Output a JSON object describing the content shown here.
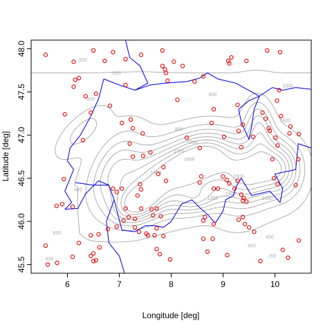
{
  "chart_data": {
    "type": "scatter",
    "title": "",
    "xlabel": "Longitude [deg]",
    "ylabel": "Latitude [deg]",
    "xlim": [
      5.3,
      10.7
    ],
    "ylim": [
      45.4,
      48.1
    ],
    "x_ticks": [
      6,
      7,
      8,
      9,
      10
    ],
    "y_ticks": [
      45.5,
      46.0,
      46.5,
      47.0,
      47.5,
      48.0
    ],
    "x_tick_labels": [
      "6",
      "7",
      "8",
      "9",
      "10"
    ],
    "y_tick_labels": [
      "45.5",
      "46.0",
      "46.5",
      "47.0",
      "47.5",
      "48.0"
    ],
    "grid": false,
    "legend": "none",
    "colors": {
      "points": "#e00000",
      "border": "#1010e0",
      "contours": "#9a9a9a",
      "contour_labels": "#a8a8a8"
    },
    "contour_levels": [
      200,
      400,
      600,
      800,
      1000,
      1200,
      1400,
      1600,
      1800
    ],
    "contour_labels": [
      {
        "text": "600",
        "lon": 6.3,
        "lat": 47.85
      },
      {
        "text": "800",
        "lon": 6.45,
        "lat": 47.4
      },
      {
        "text": "600",
        "lon": 6.95,
        "lat": 47.7
      },
      {
        "text": "800",
        "lon": 8.15,
        "lat": 47.05
      },
      {
        "text": "1200",
        "lon": 8.15,
        "lat": 46.8
      },
      {
        "text": "1400",
        "lon": 7.7,
        "lat": 46.55
      },
      {
        "text": "1000",
        "lon": 8.4,
        "lat": 46.9
      },
      {
        "text": "800",
        "lon": 8.8,
        "lat": 47.45
      },
      {
        "text": "1000",
        "lon": 10.25,
        "lat": 47.55
      },
      {
        "text": "1600",
        "lon": 10.2,
        "lat": 47.15
      },
      {
        "text": "1800",
        "lon": 9.3,
        "lat": 46.5
      },
      {
        "text": "1600",
        "lon": 8.35,
        "lat": 46.7
      },
      {
        "text": "1200",
        "lon": 8.8,
        "lat": 46.25
      },
      {
        "text": "1400",
        "lon": 9.15,
        "lat": 46.3
      },
      {
        "text": "1800",
        "lon": 9.85,
        "lat": 46.25
      },
      {
        "text": "400",
        "lon": 6.2,
        "lat": 46.35
      },
      {
        "text": "600",
        "lon": 5.8,
        "lat": 45.85
      },
      {
        "text": "400",
        "lon": 5.65,
        "lat": 45.55
      },
      {
        "text": "600",
        "lon": 9.9,
        "lat": 45.8
      },
      {
        "text": "400",
        "lon": 9.55,
        "lat": 45.7
      },
      {
        "text": "200",
        "lon": 9.95,
        "lat": 45.58
      }
    ],
    "points": [
      {
        "lon": 5.58,
        "lat": 47.93
      },
      {
        "lon": 6.12,
        "lat": 47.85
      },
      {
        "lon": 6.15,
        "lat": 47.64
      },
      {
        "lon": 6.22,
        "lat": 47.66
      },
      {
        "lon": 6.12,
        "lat": 47.56
      },
      {
        "lon": 6.5,
        "lat": 47.98
      },
      {
        "lon": 6.72,
        "lat": 47.86
      },
      {
        "lon": 6.88,
        "lat": 47.96
      },
      {
        "lon": 7.12,
        "lat": 47.88
      },
      {
        "lon": 7.42,
        "lat": 47.93
      },
      {
        "lon": 7.83,
        "lat": 47.98
      },
      {
        "lon": 7.83,
        "lat": 47.8
      },
      {
        "lon": 7.88,
        "lat": 47.76
      },
      {
        "lon": 7.9,
        "lat": 47.72
      },
      {
        "lon": 8.05,
        "lat": 47.85
      },
      {
        "lon": 8.22,
        "lat": 47.8
      },
      {
        "lon": 7.93,
        "lat": 47.63
      },
      {
        "lon": 8.45,
        "lat": 47.62
      },
      {
        "lon": 8.62,
        "lat": 47.68
      },
      {
        "lon": 9.1,
        "lat": 47.86
      },
      {
        "lon": 9.12,
        "lat": 47.83
      },
      {
        "lon": 9.16,
        "lat": 47.9
      },
      {
        "lon": 9.45,
        "lat": 47.86
      },
      {
        "lon": 9.85,
        "lat": 47.98
      },
      {
        "lon": 10.1,
        "lat": 47.96
      },
      {
        "lon": 10.08,
        "lat": 47.52
      },
      {
        "lon": 10.04,
        "lat": 47.4
      },
      {
        "lon": 6.35,
        "lat": 47.45
      },
      {
        "lon": 6.55,
        "lat": 47.48
      },
      {
        "lon": 6.82,
        "lat": 47.34
      },
      {
        "lon": 7.12,
        "lat": 47.58
      },
      {
        "lon": 8.12,
        "lat": 47.41
      },
      {
        "lon": 5.95,
        "lat": 47.24
      },
      {
        "lon": 6.45,
        "lat": 47.26
      },
      {
        "lon": 7.05,
        "lat": 47.14
      },
      {
        "lon": 7.22,
        "lat": 47.18
      },
      {
        "lon": 7.26,
        "lat": 47.08
      },
      {
        "lon": 6.3,
        "lat": 46.94
      },
      {
        "lon": 7.2,
        "lat": 46.9
      },
      {
        "lon": 7.45,
        "lat": 47.02
      },
      {
        "lon": 7.6,
        "lat": 46.8
      },
      {
        "lon": 7.46,
        "lat": 46.76
      },
      {
        "lon": 7.26,
        "lat": 46.75
      },
      {
        "lon": 8.78,
        "lat": 47.14
      },
      {
        "lon": 8.82,
        "lat": 47.3
      },
      {
        "lon": 9.28,
        "lat": 47.35
      },
      {
        "lon": 9.3,
        "lat": 47.05
      },
      {
        "lon": 9.02,
        "lat": 46.98
      },
      {
        "lon": 9.38,
        "lat": 47.12
      },
      {
        "lon": 9.35,
        "lat": 46.86
      },
      {
        "lon": 9.58,
        "lat": 46.98
      },
      {
        "lon": 9.76,
        "lat": 47.26
      },
      {
        "lon": 9.82,
        "lat": 47.19
      },
      {
        "lon": 9.88,
        "lat": 47.08
      },
      {
        "lon": 9.9,
        "lat": 47.05
      },
      {
        "lon": 10.12,
        "lat": 47.22
      },
      {
        "lon": 10.3,
        "lat": 47.1
      },
      {
        "lon": 10.28,
        "lat": 47.02
      },
      {
        "lon": 10.01,
        "lat": 46.97
      },
      {
        "lon": 10.05,
        "lat": 46.88
      },
      {
        "lon": 9.95,
        "lat": 46.72
      },
      {
        "lon": 10.46,
        "lat": 47.01
      },
      {
        "lon": 10.45,
        "lat": 46.72
      },
      {
        "lon": 8.55,
        "lat": 46.85
      },
      {
        "lon": 8.3,
        "lat": 46.97
      },
      {
        "lon": 7.85,
        "lat": 46.63
      },
      {
        "lon": 7.9,
        "lat": 46.47
      },
      {
        "lon": 7.75,
        "lat": 46.55
      },
      {
        "lon": 7.4,
        "lat": 46.43
      },
      {
        "lon": 7.42,
        "lat": 46.37
      },
      {
        "lon": 7.35,
        "lat": 46.3
      },
      {
        "lon": 7.05,
        "lat": 46.38
      },
      {
        "lon": 6.88,
        "lat": 46.38
      },
      {
        "lon": 6.95,
        "lat": 46.34
      },
      {
        "lon": 5.93,
        "lat": 46.49
      },
      {
        "lon": 5.79,
        "lat": 46.18
      },
      {
        "lon": 5.9,
        "lat": 46.2
      },
      {
        "lon": 6.1,
        "lat": 46.17
      },
      {
        "lon": 7.12,
        "lat": 46.15
      },
      {
        "lon": 7.42,
        "lat": 46.15
      },
      {
        "lon": 7.62,
        "lat": 46.14
      },
      {
        "lon": 7.72,
        "lat": 46.15
      },
      {
        "lon": 7.08,
        "lat": 46.01
      },
      {
        "lon": 7.18,
        "lat": 46.05
      },
      {
        "lon": 7.3,
        "lat": 46.03
      },
      {
        "lon": 7.65,
        "lat": 46.07
      },
      {
        "lon": 7.8,
        "lat": 46.06
      },
      {
        "lon": 8.58,
        "lat": 46.52
      },
      {
        "lon": 8.55,
        "lat": 46.45
      },
      {
        "lon": 8.82,
        "lat": 46.38
      },
      {
        "lon": 8.9,
        "lat": 46.38
      },
      {
        "lon": 9.0,
        "lat": 46.52
      },
      {
        "lon": 9.07,
        "lat": 46.48
      },
      {
        "lon": 9.12,
        "lat": 46.44
      },
      {
        "lon": 9.28,
        "lat": 46.47
      },
      {
        "lon": 9.22,
        "lat": 46.38
      },
      {
        "lon": 9.35,
        "lat": 46.31
      },
      {
        "lon": 9.4,
        "lat": 46.27
      },
      {
        "lon": 9.38,
        "lat": 46.24
      },
      {
        "lon": 9.45,
        "lat": 46.23
      },
      {
        "lon": 9.98,
        "lat": 46.5
      },
      {
        "lon": 10.05,
        "lat": 46.43
      },
      {
        "lon": 10.4,
        "lat": 46.42
      },
      {
        "lon": 6.78,
        "lat": 45.91
      },
      {
        "lon": 6.95,
        "lat": 45.94
      },
      {
        "lon": 7.3,
        "lat": 45.93
      },
      {
        "lon": 7.38,
        "lat": 45.88
      },
      {
        "lon": 7.52,
        "lat": 45.86
      },
      {
        "lon": 7.55,
        "lat": 45.84
      },
      {
        "lon": 7.68,
        "lat": 45.84
      },
      {
        "lon": 7.85,
        "lat": 45.83
      },
      {
        "lon": 7.72,
        "lat": 45.92
      },
      {
        "lon": 6.6,
        "lat": 45.85
      },
      {
        "lon": 6.45,
        "lat": 45.84
      },
      {
        "lon": 6.22,
        "lat": 45.75
      },
      {
        "lon": 8.65,
        "lat": 46.05
      },
      {
        "lon": 8.62,
        "lat": 46.01
      },
      {
        "lon": 8.82,
        "lat": 45.97
      },
      {
        "lon": 8.62,
        "lat": 45.8
      },
      {
        "lon": 8.8,
        "lat": 45.8
      },
      {
        "lon": 9.3,
        "lat": 46.02
      },
      {
        "lon": 9.38,
        "lat": 46.05
      },
      {
        "lon": 9.42,
        "lat": 45.97
      },
      {
        "lon": 9.5,
        "lat": 45.93
      },
      {
        "lon": 9.6,
        "lat": 45.88
      },
      {
        "lon": 10.46,
        "lat": 45.78
      },
      {
        "lon": 5.58,
        "lat": 45.72
      },
      {
        "lon": 5.62,
        "lat": 45.5
      },
      {
        "lon": 5.8,
        "lat": 45.52
      },
      {
        "lon": 6.1,
        "lat": 45.59
      },
      {
        "lon": 6.45,
        "lat": 45.6
      },
      {
        "lon": 6.5,
        "lat": 45.63
      },
      {
        "lon": 6.5,
        "lat": 45.54
      },
      {
        "lon": 6.55,
        "lat": 45.55
      },
      {
        "lon": 6.62,
        "lat": 45.7
      },
      {
        "lon": 7.72,
        "lat": 45.68
      },
      {
        "lon": 7.78,
        "lat": 45.62
      },
      {
        "lon": 7.98,
        "lat": 45.56
      },
      {
        "lon": 8.7,
        "lat": 45.65
      },
      {
        "lon": 9.08,
        "lat": 45.61
      },
      {
        "lon": 9.72,
        "lat": 45.54
      },
      {
        "lon": 10.15,
        "lat": 45.67
      },
      {
        "lon": 10.25,
        "lat": 45.58
      }
    ]
  }
}
